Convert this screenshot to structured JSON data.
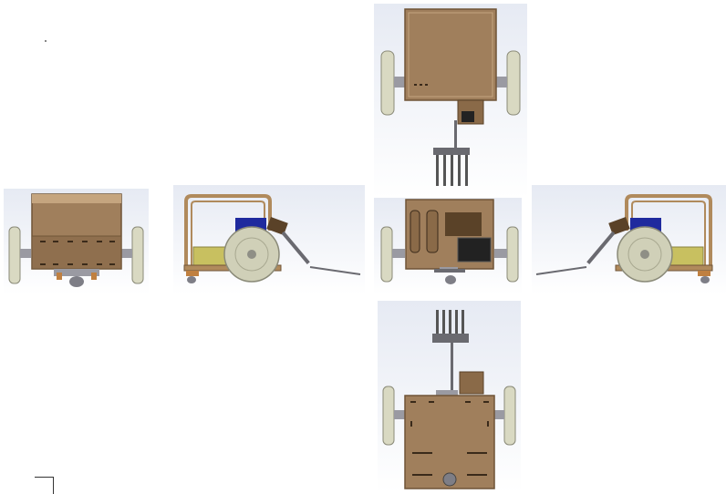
{
  "diagram": {
    "views": [
      {
        "id": "top",
        "caption": ""
      },
      {
        "id": "rear",
        "caption": ""
      },
      {
        "id": "left",
        "caption": ""
      },
      {
        "id": "front",
        "caption": ""
      },
      {
        "id": "right",
        "caption": ""
      },
      {
        "id": "bottom",
        "caption": ""
      }
    ],
    "colors": {
      "background_gradient_top": "#e9ecf4",
      "background_gradient_bottom": "#ffffff",
      "chassis_wood": "#a07f5c",
      "chassis_wood_dark": "#6f5437",
      "chassis_wood_light": "#c5a57f",
      "wheel_tire": "#d9d9c2",
      "wheel_hub": "#8f8f86",
      "axle_metal": "#9a9aa2",
      "motor_blue": "#1f2a9e",
      "battery_yellow": "#c8c060",
      "frame_tan": "#b08a5c",
      "fork_steel": "#6a6a70",
      "caster_gray": "#7e7e86"
    },
    "icons": [
      "robot-top-view",
      "robot-rear-view",
      "robot-left-view",
      "robot-front-view",
      "robot-right-view",
      "robot-bottom-view"
    ]
  }
}
